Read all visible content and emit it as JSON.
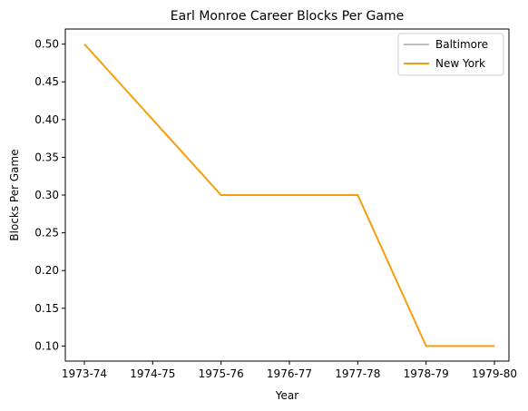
{
  "chart_data": {
    "type": "line",
    "title": "Earl Monroe Career Blocks Per Game",
    "xlabel": "Year",
    "ylabel": "Blocks Per Game",
    "categories": [
      "1973-74",
      "1974-75",
      "1975-76",
      "1976-77",
      "1977-78",
      "1978-79",
      "1979-80"
    ],
    "ylim": [
      0.08,
      0.52
    ],
    "yticks": [
      0.1,
      0.15,
      0.2,
      0.25,
      0.3,
      0.35,
      0.4,
      0.45,
      0.5
    ],
    "ytick_labels": [
      "0.10",
      "0.15",
      "0.20",
      "0.25",
      "0.30",
      "0.35",
      "0.40",
      "0.45",
      "0.50"
    ],
    "legend_position": "top-right",
    "series": [
      {
        "name": "Baltimore",
        "color": "#c0c0c0",
        "values": [
          null,
          null,
          null,
          null,
          null,
          null,
          null
        ]
      },
      {
        "name": "New York",
        "color": "#f59e0b",
        "values": [
          0.5,
          0.4,
          0.3,
          0.3,
          0.3,
          0.1,
          0.1
        ]
      }
    ]
  }
}
